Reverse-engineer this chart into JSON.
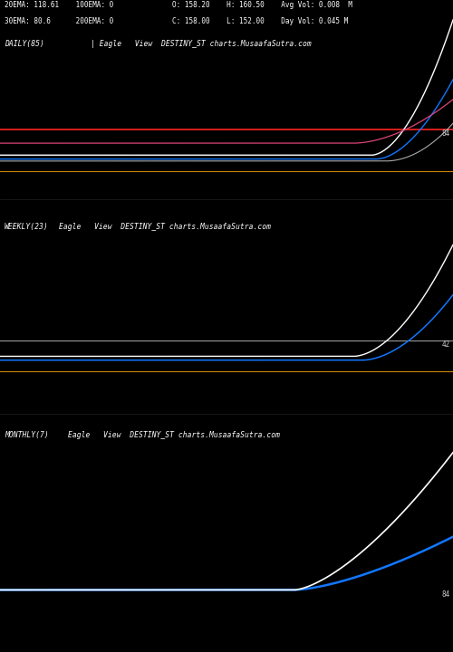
{
  "background_color": "#000000",
  "text_color": "#ffffff",
  "panel1": {
    "label": "DAILY(85)",
    "subtitle": "| Eagle   View  DESTINY_ST charts.MusaafaSutra.com",
    "info_line1": "20EMA: 118.61    100EMA: 0              O: 158.20    H: 160.50    Avg Vol: 0.008  M",
    "info_line2": "30EMA: 80.6      200EMA: 0              C: 158.00    L: 152.00    Day Vol: 0.045 M",
    "tag": "84"
  },
  "panel2": {
    "label": "WEEKLY(23)",
    "subtitle": "Eagle   View  DESTINY_ST charts.MusaafaSutra.com",
    "tag": "42"
  },
  "panel3": {
    "label": "MONTHLY(7)",
    "subtitle": "Eagle   View  DESTINY_ST charts.MusaafaSutra.com",
    "tag": "84"
  },
  "font_size_info": 5.5,
  "font_size_label": 5.8
}
